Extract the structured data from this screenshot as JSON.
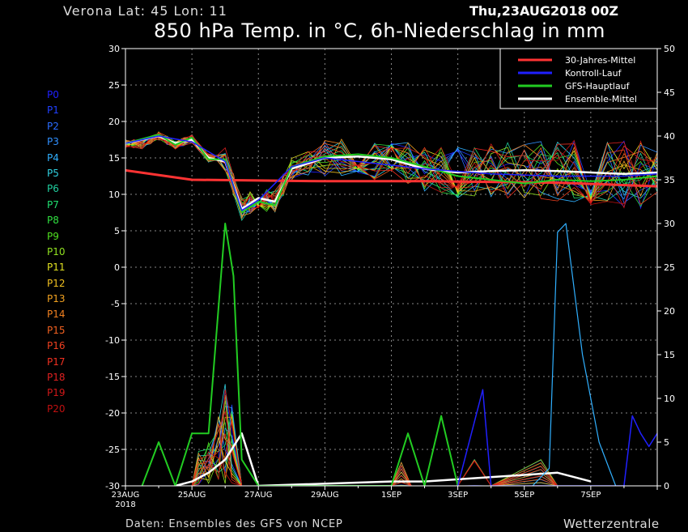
{
  "header": {
    "location": "Verona   Lat: 45 Lon: 11",
    "datetime": "Thu,23AUG2018 00Z",
    "title": "850 hPa Temp. in °C, 6h-Niederschlag in mm"
  },
  "footer": {
    "source": "Daten: Ensembles des GFS von NCEP",
    "brand": "Wetterzentrale"
  },
  "members": [
    {
      "label": "P0",
      "color": "#2020ff"
    },
    {
      "label": "P1",
      "color": "#2040ff"
    },
    {
      "label": "P2",
      "color": "#2a6cff"
    },
    {
      "label": "P3",
      "color": "#3090ff"
    },
    {
      "label": "P4",
      "color": "#30b0ff"
    },
    {
      "label": "P5",
      "color": "#30d0e0"
    },
    {
      "label": "P6",
      "color": "#20d0a0"
    },
    {
      "label": "P7",
      "color": "#20e070"
    },
    {
      "label": "P8",
      "color": "#30e040"
    },
    {
      "label": "P9",
      "color": "#50e020"
    },
    {
      "label": "P10",
      "color": "#90e020"
    },
    {
      "label": "P11",
      "color": "#e0e020"
    },
    {
      "label": "P12",
      "color": "#f0c020"
    },
    {
      "label": "P13",
      "color": "#f0a020"
    },
    {
      "label": "P14",
      "color": "#f08020"
    },
    {
      "label": "P15",
      "color": "#f06020"
    },
    {
      "label": "P16",
      "color": "#f04020"
    },
    {
      "label": "P17",
      "color": "#f03020"
    },
    {
      "label": "P18",
      "color": "#e02020"
    },
    {
      "label": "P19",
      "color": "#d01818"
    },
    {
      "label": "P20",
      "color": "#c01010"
    }
  ],
  "chart_data": {
    "type": "line",
    "title": "850 hPa Temp. in °C, 6h-Niederschlag in mm",
    "y_left": {
      "ticks": [
        30,
        25,
        20,
        15,
        10,
        5,
        0,
        -5,
        -10,
        -15,
        -20,
        -25,
        -30
      ],
      "range": [
        -30,
        30
      ]
    },
    "y_right": {
      "ticks": [
        50,
        45,
        40,
        35,
        30,
        25,
        20,
        15,
        10,
        5,
        0
      ],
      "range": [
        0,
        50
      ]
    },
    "x_ticks": [
      "23AUG",
      "25AUG",
      "27AUG",
      "29AUG",
      "1SEP",
      "3SEP",
      "5SEP",
      "7SEP"
    ],
    "x_sublabel": "2018",
    "x_range": [
      "2018-08-23 00Z",
      "2018-09-08 00Z"
    ],
    "grid": true,
    "legend_position": "top-right",
    "legend": [
      {
        "name": "30-Jahres-Mittel",
        "color": "#ff3333"
      },
      {
        "name": "Kontroll-Lauf",
        "color": "#2020ff"
      },
      {
        "name": "GFS-Hauptlauf",
        "color": "#22cc22"
      },
      {
        "name": "Ensemble-Mittel",
        "color": "#ffffff"
      }
    ],
    "series": [
      {
        "name": "30-Jahres-Mittel",
        "axis": "left",
        "x": [
          "2018-08-23",
          "2018-08-25",
          "2018-08-29",
          "2018-09-01",
          "2018-09-05",
          "2018-09-08"
        ],
        "values": [
          13.3,
          12.0,
          11.8,
          11.8,
          11.6,
          11.1
        ]
      },
      {
        "name": "Ensemble-Mittel",
        "axis": "left",
        "x": [
          "2018-08-23",
          "2018-08-24",
          "2018-08-24 12Z",
          "2018-08-25",
          "2018-08-25 12Z",
          "2018-08-26",
          "2018-08-26 12Z",
          "2018-08-27",
          "2018-08-27 12Z",
          "2018-08-28",
          "2018-08-29",
          "2018-08-30",
          "2018-08-31",
          "2018-09-01",
          "2018-09-02",
          "2018-09-03",
          "2018-09-04",
          "2018-09-05",
          "2018-09-06",
          "2018-09-07",
          "2018-09-08"
        ],
        "values": [
          17.0,
          18.0,
          17.0,
          17.5,
          15.0,
          14.5,
          8.0,
          9.5,
          9.0,
          13.5,
          15.0,
          15.2,
          14.8,
          13.5,
          13.0,
          13.2,
          13.3,
          13.2,
          13.0,
          12.8,
          13.0
        ]
      },
      {
        "name": "Ensemble-Mittel Niederschlag",
        "axis": "right",
        "x": [
          "2018-08-24 12Z",
          "2018-08-25",
          "2018-08-25 12Z",
          "2018-08-26",
          "2018-08-26 12Z",
          "2018-08-27",
          "2018-08-31",
          "2018-09-01",
          "2018-09-05",
          "2018-09-06"
        ],
        "values": [
          0,
          0.5,
          1.5,
          3,
          6,
          0,
          0.5,
          0.5,
          1.5,
          0.5
        ]
      },
      {
        "name": "GFS-Hauptlauf",
        "axis": "left",
        "x": [
          "2018-08-23",
          "2018-08-24",
          "2018-08-24 12Z",
          "2018-08-25",
          "2018-08-25 12Z",
          "2018-08-26",
          "2018-08-26 12Z",
          "2018-08-27",
          "2018-08-27 12Z",
          "2018-08-28",
          "2018-08-29",
          "2018-08-30",
          "2018-08-31",
          "2018-09-01",
          "2018-09-02",
          "2018-09-03",
          "2018-09-04",
          "2018-09-05",
          "2018-09-06",
          "2018-09-07",
          "2018-09-08"
        ],
        "values": [
          17.0,
          18.2,
          16.8,
          17.8,
          14.8,
          14.8,
          7.5,
          9.0,
          8.5,
          13.8,
          15.2,
          15.5,
          15.0,
          13.8,
          12.5,
          12.0,
          11.5,
          12.0,
          11.8,
          12.0,
          12.5
        ]
      },
      {
        "name": "GFS-Hauptlauf Niederschlag",
        "axis": "right",
        "x": [
          "2018-08-23 12Z",
          "2018-08-24",
          "2018-08-24 12Z",
          "2018-08-25",
          "2018-08-25 12Z",
          "2018-08-26",
          "2018-08-26 06Z",
          "2018-08-26 12Z",
          "2018-08-27",
          "2018-08-31",
          "2018-08-31 12Z",
          "2018-09-01",
          "2018-09-01 12Z",
          "2018-09-02"
        ],
        "values": [
          0,
          5,
          0,
          6,
          6,
          30,
          24,
          3,
          0,
          0,
          6,
          0,
          8,
          0
        ]
      },
      {
        "name": "Kontroll-Lauf",
        "axis": "left",
        "x": [
          "2018-08-23",
          "2018-08-24",
          "2018-08-25",
          "2018-08-26",
          "2018-08-26 12Z",
          "2018-08-27",
          "2018-08-28",
          "2018-08-29",
          "2018-09-01",
          "2018-09-03",
          "2018-09-05",
          "2018-09-07",
          "2018-09-08"
        ],
        "values": [
          17.0,
          18.0,
          17.2,
          14.5,
          7.8,
          9.2,
          13.8,
          15.0,
          13.5,
          12.8,
          12.5,
          12.5,
          12.8
        ]
      },
      {
        "name": "Kontroll-Lauf Niederschlag",
        "axis": "right",
        "x": [
          "2018-09-02",
          "2018-09-02 18Z",
          "2018-09-03",
          "2018-09-07",
          "2018-09-07 06Z",
          "2018-09-07 12Z",
          "2018-09-07 18Z",
          "2018-09-08"
        ],
        "values": [
          0,
          11,
          0,
          0,
          8,
          6,
          4.5,
          6
        ]
      },
      {
        "name": "P4 Niederschlag",
        "axis": "right",
        "x": [
          "2018-09-04 06Z",
          "2018-09-04 18Z",
          "2018-09-05",
          "2018-09-05 06Z",
          "2018-09-05 18Z",
          "2018-09-06 06Z",
          "2018-09-06 18Z"
        ],
        "values": [
          0,
          2,
          29,
          30,
          15,
          5,
          0
        ]
      }
    ]
  }
}
